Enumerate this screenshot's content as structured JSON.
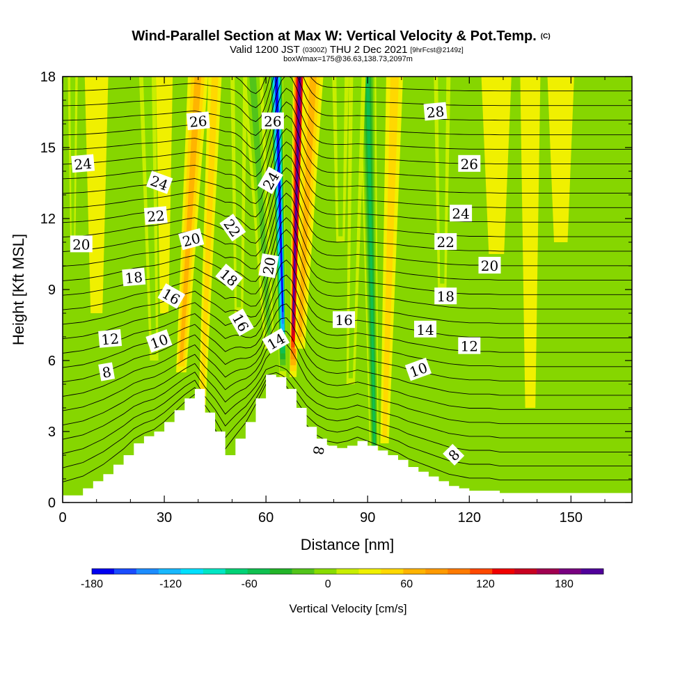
{
  "title": {
    "main": "Wind-Parallel Section at Max W: Vertical Velocity & Pot.Temp.",
    "mark": "(C)",
    "valid_prefix": "Valid 1200 JST",
    "valid_utc": "(0300Z)",
    "valid_date": "THU 2 Dec 2021",
    "forecast": "[9hrFcst@2149z]",
    "box_info": "boxWmax=175@36.63,138.73,2097m"
  },
  "chart_data": {
    "type": "heatmap",
    "xlabel": "Distance [nm]",
    "ylabel": "Height [Kft MSL]",
    "xlim": [
      0,
      168
    ],
    "ylim": [
      0,
      18
    ],
    "x_ticks": [
      0,
      30,
      60,
      90,
      120,
      150
    ],
    "y_ticks": [
      0,
      3,
      6,
      9,
      12,
      15,
      18
    ],
    "colorbar": {
      "label": "Vertical Velocity [cm/s]",
      "min": -180,
      "max": 210,
      "step": 15,
      "tick_values": [
        -180,
        -120,
        -60,
        0,
        60,
        120,
        180
      ],
      "colors": [
        "#0000f0",
        "#1a4cff",
        "#1c8cff",
        "#18b8ff",
        "#00e0ff",
        "#00e6c4",
        "#00d276",
        "#10c050",
        "#22b428",
        "#52c41a",
        "#88dc00",
        "#c8ee00",
        "#f0f000",
        "#ffd800",
        "#ffb400",
        "#ff9a00",
        "#ff7a00",
        "#ff4800",
        "#f00000",
        "#c80020",
        "#a00050",
        "#780080",
        "#50009a"
      ],
      "background_color": "#86d600"
    },
    "terrain_profile": {
      "x": [
        0,
        6,
        9,
        12,
        15,
        18,
        21,
        24,
        27,
        30,
        33,
        36,
        39,
        42,
        45,
        48,
        51,
        54,
        57,
        60,
        63,
        66,
        69,
        72,
        75,
        78,
        81,
        84,
        87,
        90,
        93,
        96,
        99,
        102,
        105,
        108,
        111,
        114,
        117,
        120,
        123,
        126,
        129,
        132,
        135,
        138,
        141,
        144,
        147,
        150,
        153,
        156,
        159,
        162,
        165,
        168
      ],
      "y": [
        0.3,
        0.6,
        0.9,
        1.2,
        1.6,
        2.0,
        2.5,
        2.8,
        3.0,
        3.4,
        3.9,
        4.4,
        4.8,
        3.8,
        3.0,
        2.0,
        2.7,
        3.4,
        4.4,
        5.4,
        5.3,
        4.8,
        4.0,
        3.2,
        2.7,
        2.4,
        2.3,
        2.4,
        2.6,
        2.4,
        2.2,
        2.0,
        1.8,
        1.5,
        1.3,
        1.1,
        0.9,
        0.7,
        0.6,
        0.5,
        0.5,
        0.5,
        0.4,
        0.4,
        0.4,
        0.4,
        0.4,
        0.4,
        0.4,
        0.4,
        0.4,
        0.4,
        0.4,
        0.4,
        0.4,
        0.4
      ]
    },
    "velocity_features": [
      {
        "x": 40,
        "x_bottom": 35,
        "y_bottom": 5.5,
        "width": 6,
        "value": 45
      },
      {
        "x": 45,
        "x_bottom": 41,
        "y_bottom": 3.5,
        "width": 4,
        "value": 30
      },
      {
        "x": 63,
        "x_bottom": 65,
        "y_bottom": 5.3,
        "width": 4,
        "value": -195
      },
      {
        "x": 56,
        "x_bottom": 61,
        "y_bottom": 6.5,
        "width": 6,
        "value": -40
      },
      {
        "x": 70,
        "x_bottom": 68,
        "y_bottom": 5.3,
        "width": 4,
        "value": 165
      },
      {
        "x": 74,
        "x_bottom": 70,
        "y_bottom": 6.5,
        "width": 6,
        "value": 45
      },
      {
        "x": 90,
        "x_bottom": 92,
        "y_bottom": 1.5,
        "width": 5,
        "value": -65
      },
      {
        "x": 98,
        "x_bottom": 95,
        "y_bottom": 2.5,
        "width": 5,
        "value": 30
      },
      {
        "x": 87,
        "x_bottom": 85,
        "y_bottom": 5.0,
        "width": 5,
        "value": -30
      },
      {
        "x": 10,
        "x_bottom": 10,
        "y_bottom": 8.0,
        "width": 7,
        "value": 15
      },
      {
        "x": 3,
        "x_bottom": 3,
        "y_bottom": 11.0,
        "width": 3,
        "value": -20
      },
      {
        "x": 25,
        "x_bottom": 27,
        "y_bottom": 6.0,
        "width": 5,
        "value": -20
      },
      {
        "x": 30,
        "x_bottom": 30,
        "y_bottom": 8.0,
        "width": 5,
        "value": 15
      },
      {
        "x": 52,
        "x_bottom": 52,
        "y_bottom": 8.0,
        "width": 5,
        "value": -25
      },
      {
        "x": 82,
        "x_bottom": 82,
        "y_bottom": 11.0,
        "width": 5,
        "value": -20
      },
      {
        "x": 112,
        "x_bottom": 112,
        "y_bottom": 9.0,
        "width": 5,
        "value": -20
      },
      {
        "x": 128,
        "x_bottom": 128,
        "y_bottom": 10.5,
        "width": 9,
        "value": 15
      },
      {
        "x": 147,
        "x_bottom": 147,
        "y_bottom": 11.0,
        "width": 8,
        "value": 15
      },
      {
        "x": 138,
        "x_bottom": 138,
        "y_bottom": 4.0,
        "width": 6,
        "value": 10
      }
    ],
    "isentropes": {
      "values": [
        1,
        2,
        3,
        4,
        5,
        6,
        7,
        8,
        9,
        10,
        11,
        12,
        13,
        14,
        15,
        16,
        17,
        18,
        19,
        20,
        21,
        22,
        23,
        24,
        25,
        26,
        27,
        28,
        29
      ],
      "x": [
        0,
        12,
        24,
        33,
        40,
        46,
        52,
        58,
        63,
        66,
        70,
        76,
        84,
        92,
        100,
        108,
        116,
        124,
        140,
        152,
        168
      ],
      "base": [
        0,
        0,
        0,
        0,
        0,
        0,
        0,
        0,
        0,
        0,
        0,
        0,
        0,
        0,
        0,
        0,
        0,
        0,
        0,
        0,
        0
      ],
      "slope": [
        0.56,
        0.56,
        0.58,
        0.6,
        0.6,
        0.6,
        0.6,
        0.6,
        0.6,
        0.6,
        0.6,
        0.62,
        0.64,
        0.64,
        0.64,
        0.64,
        0.64,
        0.64,
        0.64,
        0.64,
        0.64
      ]
    },
    "labels": [
      {
        "text": "26",
        "x": 40,
        "y": 16.1,
        "angle": -5
      },
      {
        "text": "26",
        "x": 62,
        "y": 16.1,
        "angle": 0
      },
      {
        "text": "28",
        "x": 110,
        "y": 16.5,
        "angle": -5
      },
      {
        "text": "24",
        "x": 6,
        "y": 14.3,
        "angle": -5
      },
      {
        "text": "24",
        "x": 28.5,
        "y": 13.5,
        "angle": 20
      },
      {
        "text": "24",
        "x": 61.5,
        "y": 13.6,
        "angle": -60
      },
      {
        "text": "26",
        "x": 120,
        "y": 14.3,
        "angle": 0
      },
      {
        "text": "22",
        "x": 27.5,
        "y": 12.1,
        "angle": -5
      },
      {
        "text": "22",
        "x": 50,
        "y": 11.6,
        "angle": 55
      },
      {
        "text": "24",
        "x": 117.5,
        "y": 12.2,
        "angle": 0
      },
      {
        "text": "20",
        "x": 5.5,
        "y": 10.9,
        "angle": 0
      },
      {
        "text": "20",
        "x": 38,
        "y": 11.1,
        "angle": -15
      },
      {
        "text": "20",
        "x": 61,
        "y": 10.0,
        "angle": -80
      },
      {
        "text": "22",
        "x": 113,
        "y": 11.0,
        "angle": 0
      },
      {
        "text": "20",
        "x": 126,
        "y": 10.0,
        "angle": 0
      },
      {
        "text": "18",
        "x": 21,
        "y": 9.5,
        "angle": -5
      },
      {
        "text": "18",
        "x": 49,
        "y": 9.5,
        "angle": 40
      },
      {
        "text": "16",
        "x": 32,
        "y": 8.7,
        "angle": 30
      },
      {
        "text": "18",
        "x": 113,
        "y": 8.7,
        "angle": 0
      },
      {
        "text": "16",
        "x": 52.5,
        "y": 7.6,
        "angle": 60
      },
      {
        "text": "16",
        "x": 83,
        "y": 7.7,
        "angle": 0
      },
      {
        "text": "14",
        "x": 107,
        "y": 7.3,
        "angle": 0
      },
      {
        "text": "12",
        "x": 14,
        "y": 6.9,
        "angle": -5
      },
      {
        "text": "10",
        "x": 28.5,
        "y": 6.8,
        "angle": -20
      },
      {
        "text": "14",
        "x": 63,
        "y": 6.8,
        "angle": -30
      },
      {
        "text": "12",
        "x": 120,
        "y": 6.6,
        "angle": 0
      },
      {
        "text": "10",
        "x": 105,
        "y": 5.6,
        "angle": -20
      },
      {
        "text": "8",
        "x": 13,
        "y": 5.5,
        "angle": -10
      },
      {
        "text": "8",
        "x": 75.5,
        "y": 2.2,
        "angle": 100
      },
      {
        "text": "8",
        "x": 115.5,
        "y": 2.0,
        "angle": -45
      }
    ]
  }
}
